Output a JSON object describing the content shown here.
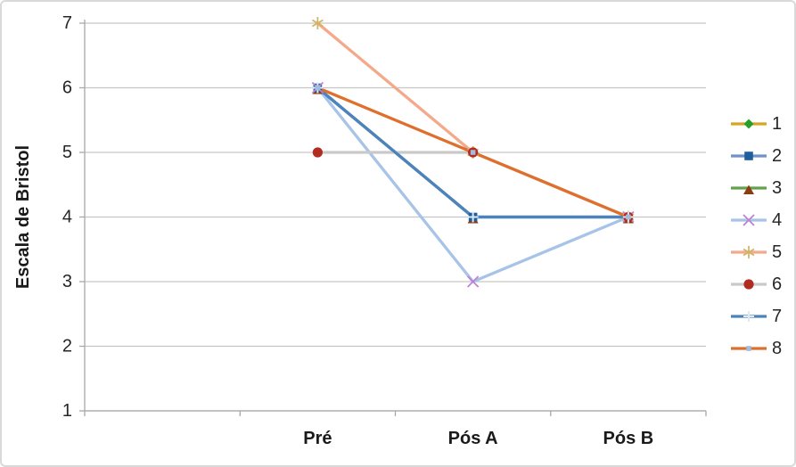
{
  "chart": {
    "ylabel": "Escala de Bristol"
  },
  "chart_data": {
    "type": "line",
    "title": "",
    "xlabel": "",
    "ylabel": "Escala de Bristol",
    "categories": [
      "",
      "Pré",
      "Pós A",
      "Pós B"
    ],
    "yticks": [
      1,
      2,
      3,
      4,
      5,
      6,
      7
    ],
    "ylim": [
      1,
      7
    ],
    "grid": true,
    "legend_position": "right",
    "series": [
      {
        "name": "1",
        "values": [
          null,
          null,
          null,
          null
        ],
        "line_color": "#DCA321",
        "marker": "diamond",
        "marker_color": "#26A026"
      },
      {
        "name": "2",
        "values": [
          null,
          6,
          4,
          4
        ],
        "line_color": "#7092C6",
        "marker": "square",
        "marker_color": "#1F5F9E"
      },
      {
        "name": "3",
        "values": [
          null,
          6,
          4,
          4
        ],
        "line_color": "#62A24D",
        "marker": "triangle",
        "marker_color": "#8A3B10"
      },
      {
        "name": "4",
        "values": [
          null,
          6,
          3,
          4
        ],
        "line_color": "#A7C4E8",
        "marker": "x",
        "marker_color": "#BC80D6"
      },
      {
        "name": "5",
        "values": [
          null,
          7,
          5,
          4
        ],
        "line_color": "#F4A98B",
        "marker": "asterisk",
        "marker_color": "#D2B364"
      },
      {
        "name": "6",
        "values": [
          null,
          5,
          5,
          4
        ],
        "line_color": "#C9C9C9",
        "marker": "circle",
        "marker_color": "#B22B20"
      },
      {
        "name": "7",
        "values": [
          null,
          6,
          4,
          4
        ],
        "line_color": "#4C83BE",
        "marker": "plus",
        "marker_color": "#DCE9F6"
      },
      {
        "name": "8",
        "values": [
          null,
          6,
          5,
          4
        ],
        "line_color": "#DF6F2D",
        "marker": "square-small",
        "marker_color": "#A3BCDA"
      }
    ],
    "colors": {
      "grid": "#C6C6C6",
      "axis": "#A8A8A8",
      "tick_label": "#262626",
      "category_label": "#1A1A1A"
    }
  }
}
